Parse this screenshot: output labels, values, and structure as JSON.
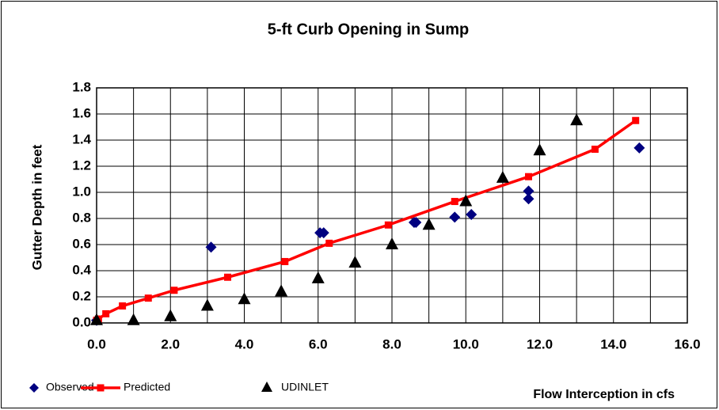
{
  "chart_data": {
    "type": "scatter",
    "title": "5-ft Curb Opening in Sump",
    "x_label": "Flow Interception in cfs",
    "y_label": "Gutter Depth in feet",
    "xlim": [
      0,
      16
    ],
    "ylim": [
      0,
      1.8
    ],
    "xticks": [
      {
        "value": 0,
        "label": "0.0"
      },
      {
        "value": 2,
        "label": "2.0"
      },
      {
        "value": 4,
        "label": "4.0"
      },
      {
        "value": 6,
        "label": "6.0"
      },
      {
        "value": 8,
        "label": "8.0"
      },
      {
        "value": 10,
        "label": "10.0"
      },
      {
        "value": 12,
        "label": "12.0"
      },
      {
        "value": 14,
        "label": "14.0"
      },
      {
        "value": 16,
        "label": "16.0"
      }
    ],
    "xminor": [
      1,
      3,
      5,
      7,
      9,
      11,
      13,
      15
    ],
    "yticks": [
      {
        "value": 0,
        "label": "0.0"
      },
      {
        "value": 0.2,
        "label": "0.2"
      },
      {
        "value": 0.4,
        "label": "0.4"
      },
      {
        "value": 0.6,
        "label": "0.6"
      },
      {
        "value": 0.8,
        "label": "0.8"
      },
      {
        "value": 1.0,
        "label": "1.0"
      },
      {
        "value": 1.2,
        "label": "1.2"
      },
      {
        "value": 1.4,
        "label": "1.4"
      },
      {
        "value": 1.6,
        "label": "1.6"
      },
      {
        "value": 1.8,
        "label": "1.8"
      }
    ],
    "grid": true,
    "legend": "bottom-left",
    "series": [
      {
        "name": "Observed",
        "color": "#000080",
        "marker": "diamond",
        "line": false,
        "x": [
          0,
          3.1,
          6.05,
          6.15,
          8.6,
          8.65,
          9.7,
          10.15,
          11.7,
          11.7,
          14.7
        ],
        "values": [
          0.02,
          0.58,
          0.69,
          0.69,
          0.77,
          0.77,
          0.81,
          0.83,
          1.01,
          0.95,
          1.34
        ]
      },
      {
        "name": "Predicted",
        "color": "#ff0000",
        "marker": "square",
        "line": true,
        "x": [
          0,
          0.05,
          0.25,
          0.7,
          1.4,
          2.1,
          3.55,
          5.1,
          6.3,
          7.9,
          9.7,
          11.7,
          13.5,
          14.6
        ],
        "values": [
          0.02,
          0.03,
          0.07,
          0.13,
          0.19,
          0.25,
          0.35,
          0.47,
          0.61,
          0.75,
          0.93,
          1.12,
          1.33,
          1.55
        ]
      },
      {
        "name": "UDINLET",
        "color": "#000000",
        "marker": "triangle",
        "line": false,
        "x": [
          0,
          1,
          2,
          3,
          4,
          5,
          6,
          7,
          8,
          9,
          10,
          11,
          12,
          13
        ],
        "values": [
          0.02,
          0.02,
          0.05,
          0.13,
          0.18,
          0.24,
          0.34,
          0.46,
          0.6,
          0.75,
          0.93,
          1.11,
          1.32,
          1.55
        ]
      }
    ]
  }
}
